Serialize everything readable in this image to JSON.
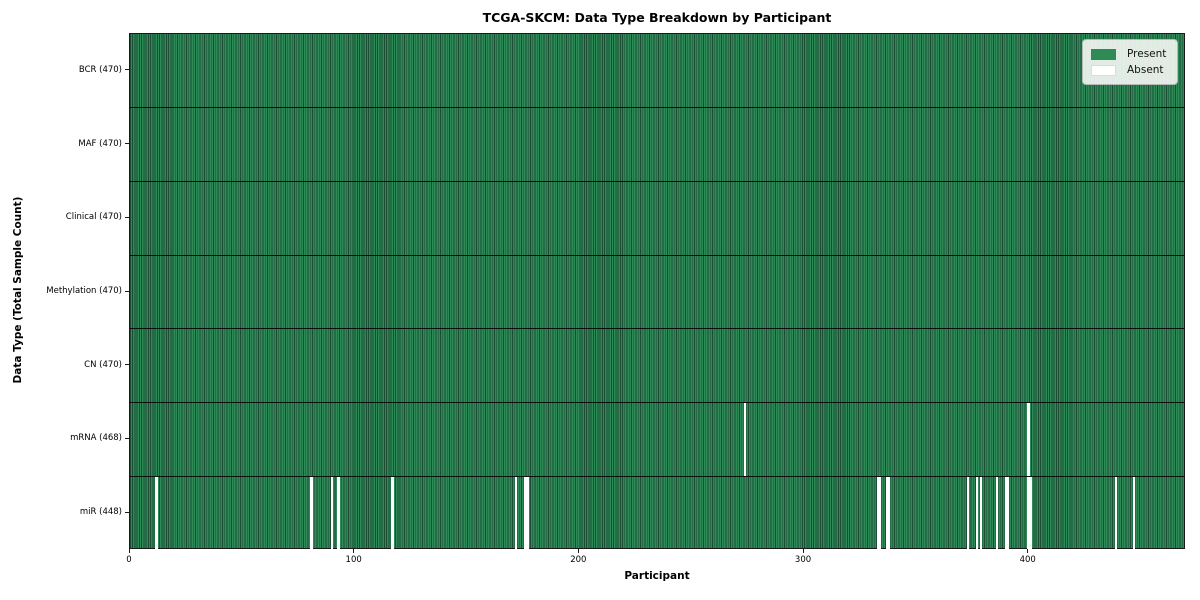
{
  "title": "TCGA-SKCM: Data Type Breakdown by Participant",
  "xlabel": "Participant",
  "ylabel": "Data Type (Total Sample Count)",
  "legend": {
    "present_label": "Present",
    "absent_label": "Absent"
  },
  "colors": {
    "present": "#2e8b57",
    "present_edge": "#1b4d33",
    "absent": "#ffffff",
    "row_divider": "#000000",
    "spine": "#1a1a1a"
  },
  "chart_data": {
    "type": "heatmap",
    "title": "TCGA-SKCM: Data Type Breakdown by Participant",
    "xlabel": "Participant",
    "ylabel": "Data Type (Total Sample Count)",
    "x_ticks": [
      0,
      100,
      200,
      300,
      400
    ],
    "x_range": [
      0,
      470
    ],
    "n_participants": 470,
    "grid": false,
    "legend_position": "upper right",
    "legend": [
      {
        "label": "Present",
        "color": "#2e8b57"
      },
      {
        "label": "Absent",
        "color": "#ffffff"
      }
    ],
    "rows": [
      {
        "label": "BCR (470)",
        "data_type": "BCR",
        "present_count": 470,
        "absent_participants": []
      },
      {
        "label": "MAF (470)",
        "data_type": "MAF",
        "present_count": 470,
        "absent_participants": []
      },
      {
        "label": "Clinical (470)",
        "data_type": "Clinical",
        "present_count": 470,
        "absent_participants": []
      },
      {
        "label": "Methylation (470)",
        "data_type": "Methylation",
        "present_count": 470,
        "absent_participants": []
      },
      {
        "label": "CN (470)",
        "data_type": "CN",
        "present_count": 470,
        "absent_participants": []
      },
      {
        "label": "mRNA (468)",
        "data_type": "mRNA",
        "present_count": 468,
        "absent_participants": [
          274,
          400
        ]
      },
      {
        "label": "miR (448)",
        "data_type": "miR",
        "present_count": 448,
        "absent_participants": [
          12,
          81,
          90,
          93,
          117,
          172,
          176,
          177,
          333,
          334,
          337,
          338,
          373,
          377,
          379,
          386,
          390,
          391,
          400,
          401,
          439,
          447
        ]
      }
    ]
  }
}
